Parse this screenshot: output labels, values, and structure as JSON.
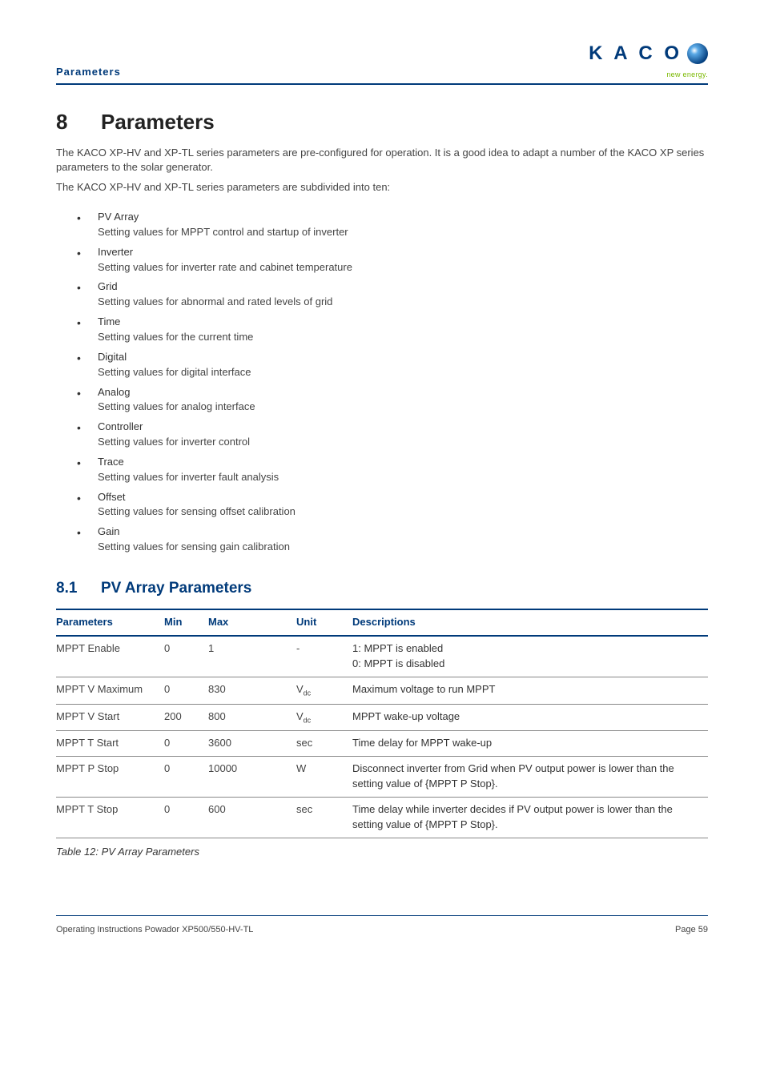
{
  "header": {
    "section_label": "Parameters",
    "logo_text": "K A C O",
    "logo_sub": "new energy."
  },
  "h1": {
    "num": "8",
    "title": "Parameters"
  },
  "intro": [
    "The KACO XP-HV and XP-TL series parameters are pre-configured for operation. It is a good idea to adapt a number of the KACO XP series parameters to the solar generator.",
    "The KACO XP-HV and XP-TL series parameters are subdivided into ten:"
  ],
  "groups": [
    {
      "name": "PV Array",
      "desc": "Setting values for MPPT control and startup of inverter"
    },
    {
      "name": "Inverter",
      "desc": "Setting values for inverter rate and cabinet temperature"
    },
    {
      "name": "Grid",
      "desc": "Setting values for abnormal and rated levels of grid"
    },
    {
      "name": "Time",
      "desc": "Setting values for the current time"
    },
    {
      "name": "Digital",
      "desc": "Setting values for digital interface"
    },
    {
      "name": "Analog",
      "desc": "Setting values for analog interface"
    },
    {
      "name": "Controller",
      "desc": "Setting values for inverter control"
    },
    {
      "name": "Trace",
      "desc": "Setting values for inverter fault analysis"
    },
    {
      "name": "Offset",
      "desc": "Setting values for sensing offset calibration"
    },
    {
      "name": "Gain",
      "desc": "Setting values for sensing gain calibration"
    }
  ],
  "h2": {
    "num": "8.1",
    "title": "PV Array Parameters"
  },
  "table": {
    "headers": {
      "param": "Parameters",
      "min": "Min",
      "max": "Max",
      "unit": "Unit",
      "desc": "Descriptions"
    },
    "rows": [
      {
        "param": "MPPT Enable",
        "min": "0",
        "max": "1",
        "unit": "-",
        "desc_lines": [
          "1: MPPT is enabled",
          "0: MPPT is disabled"
        ]
      },
      {
        "param": "MPPT V Maximum",
        "min": "0",
        "max": "830",
        "unit": "Vdc",
        "desc_lines": [
          "Maximum voltage to run MPPT"
        ]
      },
      {
        "param": "MPPT V Start",
        "min": "200",
        "max": "800",
        "unit": "Vdc",
        "desc_lines": [
          "MPPT wake-up voltage"
        ]
      },
      {
        "param": "MPPT T Start",
        "min": "0",
        "max": "3600",
        "unit": "sec",
        "desc_lines": [
          "Time delay for MPPT wake-up"
        ]
      },
      {
        "param": "MPPT P Stop",
        "min": "0",
        "max": "10000",
        "unit": "W",
        "desc_lines": [
          "Disconnect inverter from Grid when PV output power is lower than the setting value of {MPPT P Stop}."
        ]
      },
      {
        "param": "MPPT T Stop",
        "min": "0",
        "max": "600",
        "unit": "sec",
        "desc_lines": [
          "Time delay while inverter decides if PV output power is lower than the setting value of {MPPT P Stop}."
        ]
      }
    ],
    "caption": "Table 12:  PV Array Parameters"
  },
  "footer": {
    "left": "Operating Instructions Powador XP500/550-HV-TL",
    "right": "Page 59"
  },
  "colors": {
    "brand": "#003a7a",
    "accent_green": "#7ab800"
  }
}
